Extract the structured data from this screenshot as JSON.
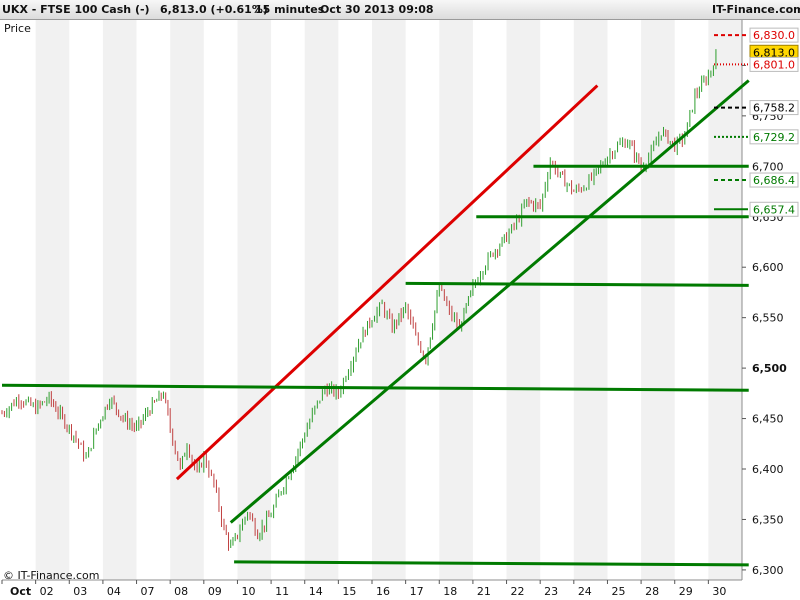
{
  "header": {
    "instrument": "UKX - FTSE 100 Cash (-)",
    "last": "6,813.0 (+0.61%)",
    "timeframe": "15 minutes",
    "datetime": "Oct 30 2013 09:08",
    "brand": "IT-Finance.com"
  },
  "price_label": "Price",
  "credit": "© IT-Finance.com",
  "chart_data": {
    "type": "line",
    "title": "",
    "xlabel": "",
    "ylabel": "Price",
    "ylim": [
      6290,
      6845
    ],
    "yticks": [
      6300,
      6350,
      6400,
      6450,
      6500,
      6550,
      6600,
      6650,
      6700,
      6750,
      6800
    ],
    "ytick_labels": [
      "6,300",
      "6,350",
      "6,400",
      "6,450",
      "6,500",
      "6,550",
      "6,600",
      "6,650",
      "6,700",
      "6,750",
      "6,800"
    ],
    "days": [
      "Oct",
      "02",
      "03",
      "04",
      "07",
      "08",
      "09",
      "10",
      "11",
      "14",
      "15",
      "16",
      "17",
      "18",
      "21",
      "22",
      "23",
      "24",
      "25",
      "28",
      "29",
      "30"
    ],
    "x_tick_labels": [
      "Oct",
      "02",
      "03",
      "04",
      "07",
      "08",
      "09",
      "10",
      "11",
      "14",
      "15",
      "16",
      "17",
      "18",
      "21",
      "22",
      "23",
      "24",
      "25",
      "28",
      "29",
      "30"
    ],
    "grid": false,
    "alternating_day_shading": true,
    "series": [
      {
        "color": "#2e9e2e",
        "points": [
          [
            0.0,
            6455
          ],
          [
            0.5,
            6470
          ],
          [
            1.0,
            6460
          ],
          [
            1.4,
            6470
          ],
          [
            1.8,
            6450
          ],
          [
            2.2,
            6430
          ],
          [
            2.5,
            6410
          ],
          [
            2.8,
            6440
          ],
          [
            3.2,
            6470
          ],
          [
            3.6,
            6450
          ],
          [
            4.0,
            6440
          ],
          [
            4.4,
            6460
          ],
          [
            4.8,
            6475
          ],
          [
            5.0,
            6440
          ],
          [
            5.3,
            6400
          ],
          [
            5.5,
            6425
          ],
          [
            5.8,
            6395
          ],
          [
            6.0,
            6412
          ],
          [
            6.3,
            6385
          ],
          [
            6.6,
            6340
          ],
          [
            6.8,
            6322
          ],
          [
            7.0,
            6335
          ],
          [
            7.3,
            6358
          ],
          [
            7.6,
            6336
          ],
          [
            8.0,
            6355
          ],
          [
            8.3,
            6380
          ],
          [
            8.6,
            6400
          ],
          [
            9.0,
            6435
          ],
          [
            9.3,
            6460
          ],
          [
            9.6,
            6480
          ],
          [
            10.0,
            6475
          ],
          [
            10.3,
            6500
          ],
          [
            10.6,
            6525
          ],
          [
            11.0,
            6550
          ],
          [
            11.3,
            6562
          ],
          [
            11.6,
            6540
          ],
          [
            12.0,
            6560
          ],
          [
            12.3,
            6530
          ],
          [
            12.6,
            6510
          ],
          [
            13.0,
            6580
          ],
          [
            13.3,
            6555
          ],
          [
            13.6,
            6540
          ],
          [
            14.0,
            6580
          ],
          [
            14.3,
            6600
          ],
          [
            14.6,
            6615
          ],
          [
            15.0,
            6630
          ],
          [
            15.3,
            6645
          ],
          [
            15.6,
            6665
          ],
          [
            16.0,
            6660
          ],
          [
            16.3,
            6705
          ],
          [
            16.6,
            6690
          ],
          [
            17.0,
            6675
          ],
          [
            17.3,
            6680
          ],
          [
            17.6,
            6690
          ],
          [
            18.0,
            6710
          ],
          [
            18.3,
            6720
          ],
          [
            18.6,
            6725
          ],
          [
            19.0,
            6700
          ],
          [
            19.3,
            6712
          ],
          [
            19.6,
            6735
          ],
          [
            20.0,
            6720
          ],
          [
            20.3,
            6730
          ],
          [
            20.6,
            6770
          ],
          [
            21.0,
            6790
          ],
          [
            21.3,
            6813
          ]
        ]
      }
    ],
    "trend_lines": [
      {
        "color": "#dd0000",
        "from": [
          5.2,
          6390
        ],
        "to": [
          17.7,
          6780
        ]
      },
      {
        "color": "#007a00",
        "from": [
          6.8,
          6347
        ],
        "to": [
          22.2,
          6785
        ]
      },
      {
        "color": "#007a00",
        "from": [
          0.0,
          6483
        ],
        "to": [
          22.2,
          6478
        ]
      },
      {
        "color": "#007a00",
        "from": [
          6.9,
          6308
        ],
        "to": [
          22.2,
          6305
        ]
      },
      {
        "color": "#007a00",
        "from": [
          12.0,
          6584
        ],
        "to": [
          22.2,
          6582
        ]
      },
      {
        "color": "#007a00",
        "from": [
          14.1,
          6650
        ],
        "to": [
          22.2,
          6650
        ]
      },
      {
        "color": "#007a00",
        "from": [
          15.8,
          6700
        ],
        "to": [
          22.2,
          6700
        ]
      }
    ],
    "price_tags": [
      {
        "label": "6,830.0",
        "value": 6830,
        "style": "red-dash"
      },
      {
        "label": "6,813.0",
        "value": 6813,
        "style": "current"
      },
      {
        "label": "6,801.0",
        "value": 6801,
        "style": "red-dot"
      },
      {
        "label": "6,758.2",
        "value": 6758.2,
        "style": "black-dash"
      },
      {
        "label": "6,729.2",
        "value": 6729.2,
        "style": "green-dot"
      },
      {
        "label": "6,686.4",
        "value": 6686.4,
        "style": "green-dash"
      },
      {
        "label": "6,657.4",
        "value": 6657.4,
        "style": "green-solid"
      }
    ],
    "colors": {
      "up_candle": "#2e9e2e",
      "down_candle": "#c04040",
      "resistance": "#dd0000",
      "support": "#007a00",
      "current_tag_bg": "#ffd700"
    }
  }
}
